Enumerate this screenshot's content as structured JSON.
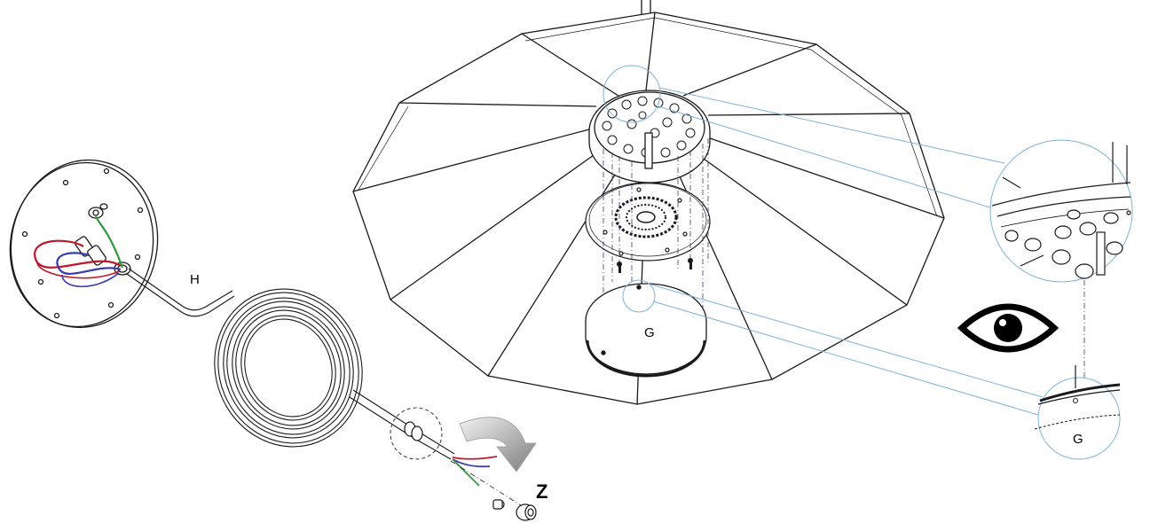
{
  "labels": {
    "hose": "H",
    "ring": "G",
    "detail_ring": "G",
    "rotate": "Z"
  },
  "icons": {
    "view": "eye-icon",
    "rotate": "curved-arrow-icon"
  },
  "colors": {
    "line": "#1a1a1a",
    "leader": "#7fb3d6",
    "wire_red": "#c0182a",
    "wire_blue": "#3a3aa8",
    "wire_green": "#2e9a3a",
    "arrow_grey": "#8a8a8a"
  }
}
